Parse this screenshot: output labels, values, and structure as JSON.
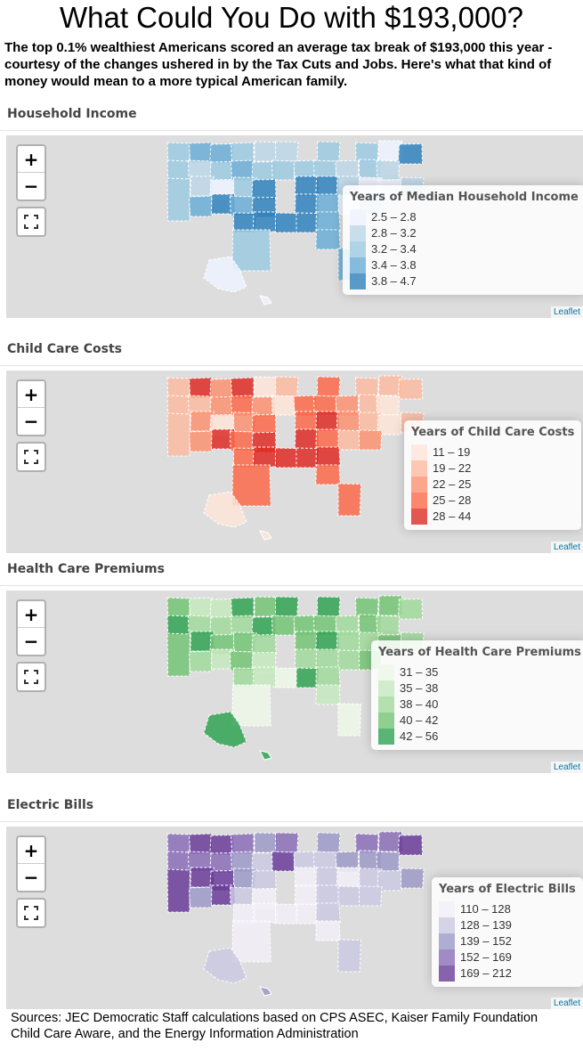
{
  "title": "What Could You Do with $193,000?",
  "intro": [
    "The top 0.1% wealthiest Americans scored an average tax break of $193,000 this year -",
    "courtesy of the changes ushered in by the Tax Cuts and Jobs. Here's what that kind of",
    "money would mean to a more typical American family."
  ],
  "controls": {
    "zoom_in": "+",
    "zoom_out": "−",
    "fullscreen_icon": "fullscreen-icon"
  },
  "attribution": "Leaflet",
  "maps": [
    {
      "section_title": "Household Income",
      "legend_title": "Years of Median Household Income",
      "bins": [
        "2.5 – 2.8",
        "2.8 – 3.2",
        "3.2 – 3.4",
        "3.4 – 3.8",
        "3.8 – 4.7"
      ],
      "colors": [
        "#eff3ff",
        "#bdd7e7",
        "#9ecae1",
        "#6baed6",
        "#3182bd"
      ],
      "classes": {
        "WA": 2,
        "OR": 2,
        "CA": 2,
        "NV": 1,
        "ID": 3,
        "MT": 3,
        "WY": 2,
        "UT": 1,
        "CO": 0,
        "AZ": 3,
        "NM": 4,
        "ND": 2,
        "SD": 3,
        "NE": 2,
        "KS": 3,
        "OK": 4,
        "TX": 2,
        "MN": 1,
        "IA": 2,
        "MO": 4,
        "AR": 4,
        "LA": 4,
        "WI": 1,
        "IL": 2,
        "MI": 2,
        "IN": 2,
        "OH": 2,
        "KY": 4,
        "TN": 4,
        "MS": 4,
        "AL": 4,
        "GA": 3,
        "FL": 3,
        "SC": 3,
        "NC": 3,
        "VA": 1,
        "WV": 4,
        "PA": 1,
        "NY": 2,
        "VT": 2,
        "NH": 0,
        "ME": 4,
        "MA": 1,
        "CT": 0,
        "RI": 1,
        "NJ": 0,
        "DE": 1,
        "MD": 0,
        "AK": 0,
        "HI": 0
      }
    },
    {
      "section_title": "Child Care Costs",
      "legend_title": "Years of Child Care Costs",
      "bins": [
        "11 – 19",
        "19 – 22",
        "22 – 25",
        "25 – 28",
        "28 – 44"
      ],
      "colors": [
        "#fee5d9",
        "#fcbba1",
        "#fc9272",
        "#fb6a4a",
        "#de2d26"
      ],
      "classes": {
        "WA": 1,
        "OR": 1,
        "CA": 1,
        "NV": 1,
        "ID": 4,
        "MT": 2,
        "WY": 2,
        "UT": 2,
        "CO": 0,
        "AZ": 2,
        "NM": 4,
        "ND": 4,
        "SD": 3,
        "NE": 2,
        "KS": 3,
        "OK": 3,
        "TX": 3,
        "MN": 0,
        "IA": 2,
        "MO": 3,
        "AR": 4,
        "LA": 4,
        "WI": 1,
        "IL": 0,
        "MI": 3,
        "IN": 3,
        "OH": 3,
        "KY": 3,
        "TN": 4,
        "MS": 4,
        "AL": 4,
        "GA": 3,
        "FL": 3,
        "SC": 4,
        "NC": 3,
        "VA": 2,
        "WV": 4,
        "PA": 2,
        "NY": 1,
        "VT": 1,
        "NH": 1,
        "ME": 1,
        "MA": 0,
        "CT": 0,
        "RI": 1,
        "NJ": 1,
        "DE": 2,
        "MD": 1,
        "AK": 0,
        "HI": 0
      }
    },
    {
      "section_title": "Health Care Premiums",
      "legend_title": "Years of Health Care Premiums",
      "bins": [
        "31 – 35",
        "35 – 38",
        "38 – 40",
        "40 – 42",
        "42 – 56"
      ],
      "colors": [
        "#edf8e9",
        "#c7e9c0",
        "#a1d99b",
        "#74c476",
        "#31a354"
      ],
      "classes": {
        "WA": 3,
        "OR": 4,
        "CA": 3,
        "NV": 2,
        "ID": 1,
        "MT": 1,
        "WY": 2,
        "UT": 4,
        "CO": 3,
        "AZ": 2,
        "NM": 1,
        "ND": 4,
        "SD": 2,
        "NE": 3,
        "KS": 3,
        "OK": 2,
        "TX": 0,
        "MN": 3,
        "IA": 4,
        "MO": 2,
        "AR": 1,
        "LA": 1,
        "WI": 4,
        "IL": 3,
        "MI": 4,
        "IN": 3,
        "OH": 3,
        "KY": 3,
        "TN": 2,
        "MS": 0,
        "AL": 4,
        "GA": 1,
        "FL": 0,
        "SC": 2,
        "NC": 2,
        "VA": 2,
        "WV": 4,
        "PA": 2,
        "NY": 3,
        "VT": 3,
        "NH": 3,
        "ME": 2,
        "MA": 2,
        "CT": 3,
        "RI": 2,
        "NJ": 2,
        "DE": 3,
        "MD": 2,
        "AK": 4,
        "HI": 4
      }
    },
    {
      "section_title": "Electric Bills",
      "legend_title": "Years of Electric Bills",
      "bins": [
        "110 – 128",
        "128 – 139",
        "139 – 152",
        "152 – 169",
        "169 – 212"
      ],
      "colors": [
        "#f2f0f7",
        "#cbc9e2",
        "#9e9ac8",
        "#8b6fb9",
        "#6a3d9a"
      ],
      "classes": {
        "WA": 3,
        "OR": 3,
        "CA": 4,
        "NV": 3,
        "ID": 4,
        "MT": 4,
        "WY": 3,
        "UT": 4,
        "CO": 4,
        "AZ": 2,
        "NM": 4,
        "ND": 3,
        "SD": 2,
        "NE": 2,
        "KS": 1,
        "OK": 0,
        "TX": 0,
        "MN": 2,
        "IA": 1,
        "MO": 1,
        "AR": 0,
        "LA": 0,
        "WI": 3,
        "IL": 4,
        "MI": 2,
        "IN": 1,
        "OH": 1,
        "KY": 0,
        "TN": 0,
        "MS": 0,
        "AL": 0,
        "GA": 0,
        "FL": 1,
        "SC": 1,
        "NC": 1,
        "VA": 0,
        "WV": 1,
        "PA": 2,
        "NY": 2,
        "VT": 3,
        "NH": 3,
        "ME": 4,
        "MA": 2,
        "CT": 1,
        "RI": 2,
        "NJ": 1,
        "DE": 1,
        "MD": 1,
        "AK": 1,
        "HI": 2
      }
    }
  ],
  "sources": [
    "Sources: JEC Democratic Staff calculations based on CPS ASEC, Kaiser Family Foundation",
    "Child Care Aware, and the Energy Information Administration"
  ]
}
